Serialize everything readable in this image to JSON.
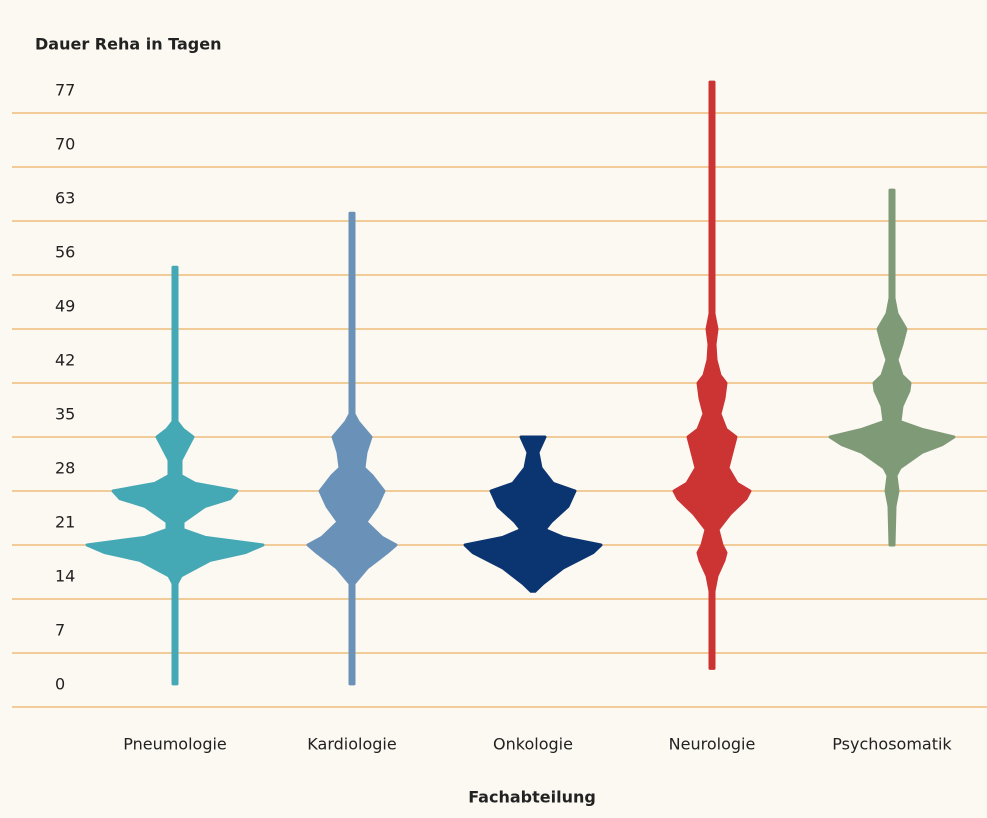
{
  "chart_data": {
    "type": "violin",
    "ylabel": "Dauer Reha in Tagen",
    "xlabel": "Fachabteilung",
    "categories": [
      "Pneumologie",
      "Kardiologie",
      "Onkologie",
      "Neurologie",
      "Psychosomatik"
    ],
    "ylim": [
      0,
      81
    ],
    "yticks": [
      0,
      7,
      14,
      21,
      28,
      35,
      42,
      49,
      56,
      63,
      70,
      77
    ],
    "grid": true,
    "grid_color": "#e9a13d",
    "violins": [
      {
        "color": "#45a8b5",
        "y": [
          3,
          16,
          17,
          19,
          20,
          21,
          22,
          23,
          24,
          26,
          27,
          28,
          29,
          30,
          32,
          34,
          35,
          36,
          37,
          57
        ],
        "density": [
          0.02,
          0.02,
          0.06,
          0.35,
          0.7,
          0.88,
          0.3,
          0.08,
          0.08,
          0.3,
          0.55,
          0.62,
          0.2,
          0.06,
          0.06,
          0.14,
          0.18,
          0.08,
          0.02,
          0.02
        ]
      },
      {
        "color": "#6a92b8",
        "y": [
          3,
          16,
          18,
          20,
          21,
          22,
          24,
          26,
          28,
          30,
          31,
          33,
          35,
          37,
          38,
          64
        ],
        "density": [
          0.02,
          0.02,
          0.15,
          0.35,
          0.44,
          0.3,
          0.14,
          0.25,
          0.32,
          0.2,
          0.12,
          0.14,
          0.19,
          0.06,
          0.02,
          0.02
        ]
      },
      {
        "color": "#0a3571",
        "y": [
          15,
          16,
          18,
          20,
          21,
          22,
          23,
          24,
          26,
          28,
          29,
          31,
          33,
          35
        ],
        "density": [
          0.02,
          0.1,
          0.3,
          0.6,
          0.68,
          0.3,
          0.12,
          0.18,
          0.35,
          0.42,
          0.2,
          0.08,
          0.05,
          0.12
        ]
      },
      {
        "color": "#cc3333",
        "y": [
          5,
          15,
          17,
          19,
          20,
          21,
          23,
          25,
          27,
          28,
          29,
          31,
          33,
          35,
          36,
          38,
          40,
          42,
          43,
          45,
          47,
          49,
          51,
          81
        ],
        "density": [
          0.02,
          0.02,
          0.05,
          0.12,
          0.14,
          0.1,
          0.06,
          0.18,
          0.34,
          0.38,
          0.25,
          0.16,
          0.2,
          0.24,
          0.14,
          0.08,
          0.12,
          0.14,
          0.08,
          0.04,
          0.03,
          0.05,
          0.02,
          0.02
        ]
      },
      {
        "color": "#7f9a77",
        "y": [
          21,
          26,
          28,
          30,
          31,
          33,
          34,
          35,
          36,
          37,
          39,
          41,
          42,
          43,
          45,
          47,
          49,
          51,
          53,
          67
        ],
        "density": [
          0.02,
          0.03,
          0.06,
          0.04,
          0.08,
          0.3,
          0.5,
          0.62,
          0.3,
          0.08,
          0.1,
          0.17,
          0.18,
          0.1,
          0.05,
          0.1,
          0.14,
          0.05,
          0.02,
          0.02
        ]
      }
    ]
  }
}
